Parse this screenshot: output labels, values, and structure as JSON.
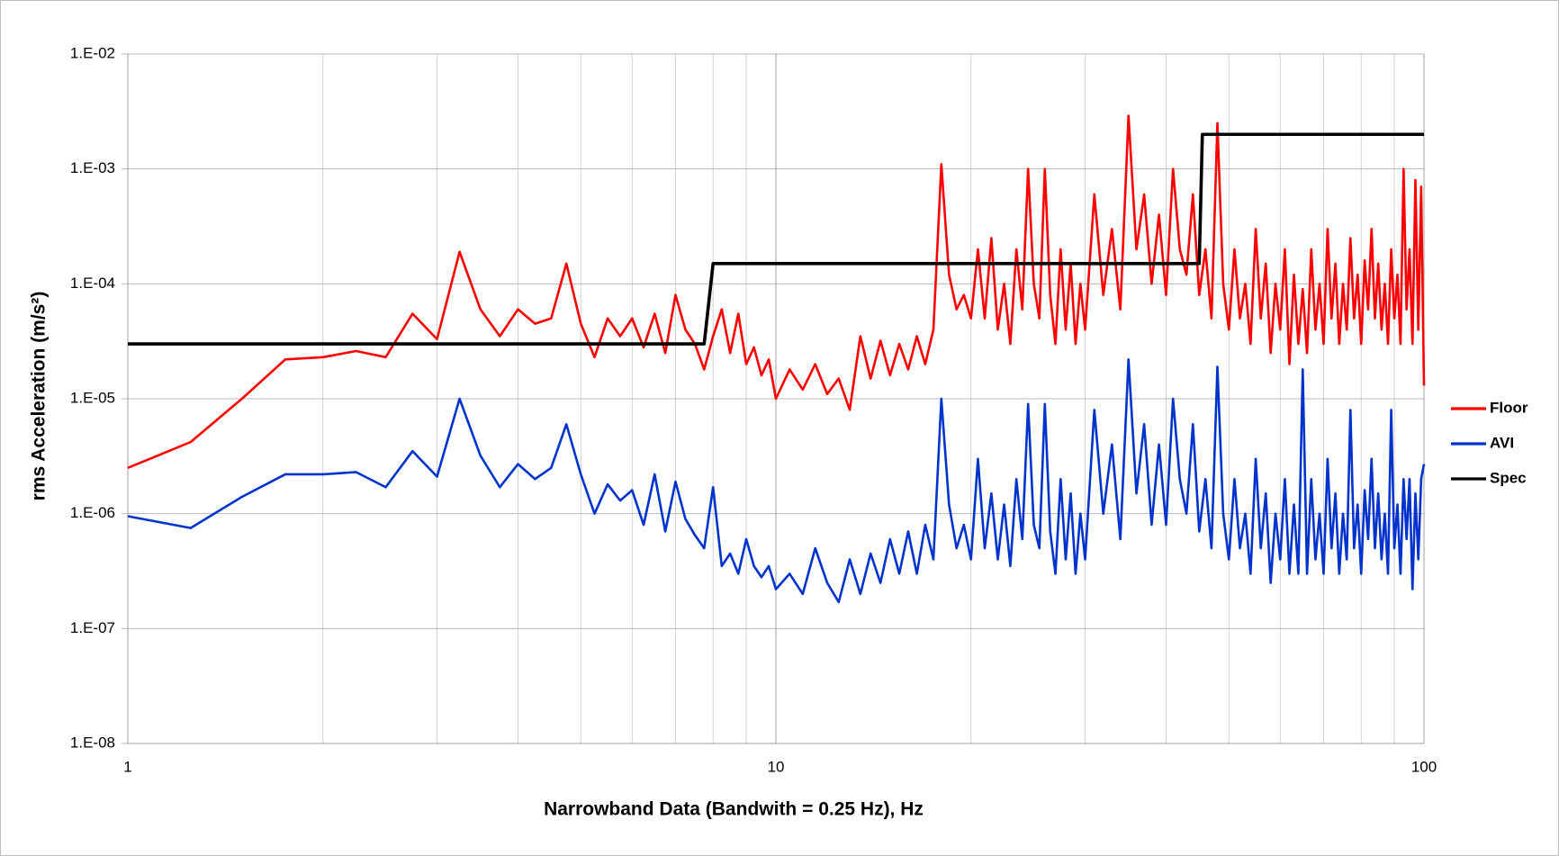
{
  "chart_data": {
    "type": "line",
    "xlabel": "Narrowband Data (Bandwith = 0.25 Hz), Hz",
    "ylabel": "rms Acceleration (m/s²)",
    "xscale": "log",
    "yscale": "log",
    "xlim": [
      1,
      100
    ],
    "ylim": [
      1e-08,
      0.01
    ],
    "xticks": [
      1,
      10,
      100
    ],
    "yticks": [
      {
        "value": 1e-08,
        "label": "1.E-08"
      },
      {
        "value": 1e-07,
        "label": "1.E-07"
      },
      {
        "value": 1e-06,
        "label": "1.E-06"
      },
      {
        "value": 1e-05,
        "label": "1.E-05"
      },
      {
        "value": 0.0001,
        "label": "1.E-04"
      },
      {
        "value": 0.001,
        "label": "1.E-03"
      },
      {
        "value": 0.01,
        "label": "1.E-02"
      }
    ],
    "grid": true,
    "minor_grid": true,
    "legend": "right",
    "x": [
      1,
      1.25,
      1.5,
      1.75,
      2,
      2.25,
      2.5,
      2.75,
      3,
      3.25,
      3.5,
      3.75,
      4,
      4.25,
      4.5,
      4.75,
      5,
      5.25,
      5.5,
      5.75,
      6,
      6.25,
      6.5,
      6.75,
      7,
      7.25,
      7.5,
      7.75,
      8,
      8.25,
      8.5,
      8.75,
      9,
      9.25,
      9.5,
      9.75,
      10,
      10.5,
      11,
      11.5,
      12,
      12.5,
      13,
      13.5,
      14,
      14.5,
      15,
      15.5,
      16,
      16.5,
      17,
      17.5,
      18,
      18.5,
      19,
      19.5,
      20,
      20.5,
      21,
      21.5,
      22,
      22.5,
      23,
      23.5,
      24,
      24.5,
      25,
      25.5,
      26,
      26.5,
      27,
      27.5,
      28,
      28.5,
      29,
      29.5,
      30,
      31,
      32,
      33,
      34,
      35,
      36,
      37,
      38,
      39,
      40,
      41,
      42,
      43,
      44,
      45,
      46,
      47,
      48,
      49,
      50,
      51,
      52,
      53,
      54,
      55,
      56,
      57,
      58,
      59,
      60,
      61,
      62,
      63,
      64,
      65,
      66,
      67,
      68,
      69,
      70,
      71,
      72,
      73,
      74,
      75,
      76,
      77,
      78,
      79,
      80,
      81,
      82,
      83,
      84,
      85,
      86,
      87,
      88,
      89,
      90,
      91,
      92,
      93,
      94,
      95,
      96,
      97,
      98,
      99,
      100
    ],
    "series": [
      {
        "name": "Floor",
        "color": "#ff0000",
        "values": [
          2.5e-06,
          4.2e-06,
          1e-05,
          2.2e-05,
          2.3e-05,
          2.6e-05,
          2.3e-05,
          5.5e-05,
          3.3e-05,
          0.00019,
          6e-05,
          3.5e-05,
          6e-05,
          4.5e-05,
          5e-05,
          0.00015,
          4.5e-05,
          2.3e-05,
          5e-05,
          3.5e-05,
          5e-05,
          2.8e-05,
          5.5e-05,
          2.5e-05,
          8e-05,
          4e-05,
          3e-05,
          1.8e-05,
          3.5e-05,
          6e-05,
          2.5e-05,
          5.5e-05,
          2e-05,
          2.8e-05,
          1.6e-05,
          2.2e-05,
          1e-05,
          1.8e-05,
          1.2e-05,
          2e-05,
          1.1e-05,
          1.5e-05,
          8e-06,
          3.5e-05,
          1.5e-05,
          3.2e-05,
          1.6e-05,
          3e-05,
          1.8e-05,
          3.5e-05,
          2e-05,
          4e-05,
          0.0011,
          0.00012,
          6e-05,
          8e-05,
          5e-05,
          0.0002,
          5e-05,
          0.00025,
          4e-05,
          0.0001,
          3e-05,
          0.0002,
          6e-05,
          0.001,
          0.0001,
          5e-05,
          0.001,
          8e-05,
          3e-05,
          0.0002,
          4e-05,
          0.00015,
          3e-05,
          0.0001,
          4e-05,
          0.0006,
          8e-05,
          0.0003,
          6e-05,
          0.0029,
          0.0002,
          0.0006,
          0.0001,
          0.0004,
          8e-05,
          0.001,
          0.0002,
          0.00012,
          0.0006,
          8e-05,
          0.0002,
          5e-05,
          0.0025,
          0.0001,
          4e-05,
          0.0002,
          5e-05,
          0.0001,
          3e-05,
          0.0003,
          5e-05,
          0.00015,
          2.5e-05,
          0.0001,
          4e-05,
          0.0002,
          2e-05,
          0.00012,
          3e-05,
          9e-05,
          2.5e-05,
          0.0002,
          4e-05,
          0.0001,
          3e-05,
          0.0003,
          5e-05,
          0.00015,
          3e-05,
          0.0001,
          4e-05,
          0.00025,
          5e-05,
          0.00012,
          3e-05,
          0.00016,
          6e-05,
          0.0003,
          5e-05,
          0.00015,
          4e-05,
          0.0001,
          3e-05,
          0.0002,
          5e-05,
          0.00012,
          3e-05,
          0.001,
          6e-05,
          0.0002,
          3e-05,
          0.0008,
          4e-05,
          0.0007,
          1.3e-05
        ]
      },
      {
        "name": "AVI",
        "color": "#0033cc",
        "values": [
          9.5e-07,
          7.5e-07,
          1.4e-06,
          2.2e-06,
          2.2e-06,
          2.3e-06,
          1.7e-06,
          3.5e-06,
          2.1e-06,
          1e-05,
          3.2e-06,
          1.7e-06,
          2.7e-06,
          2e-06,
          2.5e-06,
          6e-06,
          2.2e-06,
          1e-06,
          1.8e-06,
          1.3e-06,
          1.6e-06,
          8e-07,
          2.2e-06,
          7e-07,
          1.9e-06,
          9e-07,
          6.5e-07,
          5e-07,
          1.7e-06,
          3.5e-07,
          4.5e-07,
          3e-07,
          6e-07,
          3.5e-07,
          2.8e-07,
          3.5e-07,
          2.2e-07,
          3e-07,
          2e-07,
          5e-07,
          2.5e-07,
          1.7e-07,
          4e-07,
          2e-07,
          4.5e-07,
          2.5e-07,
          6e-07,
          3e-07,
          7e-07,
          3e-07,
          8e-07,
          4e-07,
          1e-05,
          1.2e-06,
          5e-07,
          8e-07,
          4e-07,
          3e-06,
          5e-07,
          1.5e-06,
          4e-07,
          1.2e-06,
          3.5e-07,
          2e-06,
          6e-07,
          9e-06,
          8e-07,
          5e-07,
          9e-06,
          7e-07,
          3e-07,
          2e-06,
          4e-07,
          1.5e-06,
          3e-07,
          1e-06,
          4e-07,
          8e-06,
          1e-06,
          4e-06,
          6e-07,
          2.2e-05,
          1.5e-06,
          6e-06,
          8e-07,
          4e-06,
          8e-07,
          1e-05,
          2e-06,
          1e-06,
          6e-06,
          7e-07,
          2e-06,
          5e-07,
          1.9e-05,
          1e-06,
          4e-07,
          2e-06,
          5e-07,
          1e-06,
          3e-07,
          3e-06,
          5e-07,
          1.5e-06,
          2.5e-07,
          1e-06,
          4e-07,
          2e-06,
          3e-07,
          1.2e-06,
          3e-07,
          1.8e-05,
          3e-07,
          2e-06,
          4e-07,
          1e-06,
          3e-07,
          3e-06,
          5e-07,
          1.5e-06,
          3e-07,
          1e-06,
          4e-07,
          8e-06,
          5e-07,
          1.2e-06,
          3e-07,
          1.6e-06,
          6e-07,
          3e-06,
          5e-07,
          1.5e-06,
          4e-07,
          1e-06,
          3e-07,
          8e-06,
          5e-07,
          1.2e-06,
          3e-07,
          2e-06,
          6e-07,
          2e-06,
          2.2e-07,
          1.5e-06,
          4e-07,
          2e-06,
          2.7e-06
        ]
      },
      {
        "name": "Spec",
        "color": "#000000",
        "x": [
          1,
          7.75,
          8,
          45,
          45.5,
          100
        ],
        "values": [
          3e-05,
          3e-05,
          0.00015,
          0.00015,
          0.002,
          0.002
        ]
      }
    ]
  }
}
